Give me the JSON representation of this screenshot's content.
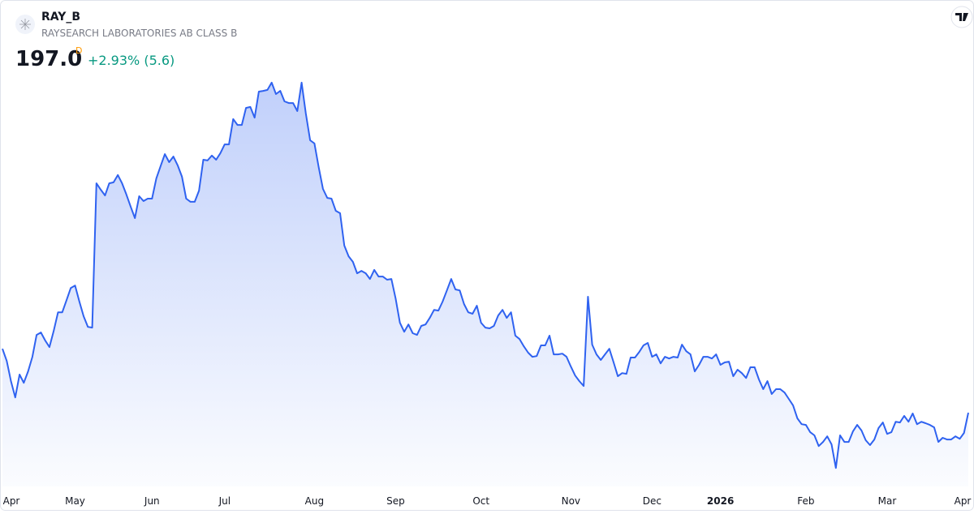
{
  "header": {
    "symbol": "RAY_B",
    "name": "RAYSEARCH LABORATORIES AB CLASS B",
    "price": "197.0",
    "currency_badge": "D",
    "change": "+2.93% (5.6)"
  },
  "chart_data": {
    "type": "area",
    "color": "#2f62f0",
    "ylim": [
      166.7,
      340
    ],
    "xlim": [
      0,
      226
    ],
    "xticks": [
      {
        "value": 1,
        "label": "Apr"
      },
      {
        "value": 17,
        "label": "May"
      },
      {
        "value": 35,
        "label": "Jun"
      },
      {
        "value": 52,
        "label": "Jul"
      },
      {
        "value": 73,
        "label": "Aug"
      },
      {
        "value": 92,
        "label": "Sep"
      },
      {
        "value": 112,
        "label": "Oct"
      },
      {
        "value": 133,
        "label": "Nov"
      },
      {
        "value": 152,
        "label": "Dec"
      },
      {
        "value": 168,
        "label": "2026"
      },
      {
        "value": 188,
        "label": "Feb"
      },
      {
        "value": 207,
        "label": "Mar"
      },
      {
        "value": 226,
        "label": "Apr"
      }
    ],
    "values": [
      223.3,
      218.3,
      210.0,
      203.3,
      212.7,
      209.3,
      214.0,
      220.0,
      229.0,
      230.0,
      226.7,
      224.0,
      230.7,
      238.3,
      238.3,
      243.3,
      248.3,
      249.3,
      242.7,
      236.7,
      232.3,
      232.0,
      291.3,
      288.7,
      286.3,
      291.3,
      291.7,
      294.7,
      291.3,
      286.7,
      281.7,
      277.0,
      286.0,
      284.0,
      285.0,
      285.0,
      293.3,
      298.3,
      303.3,
      300.0,
      302.3,
      298.7,
      294.0,
      285.0,
      283.7,
      283.7,
      288.3,
      301.0,
      300.7,
      302.7,
      301.0,
      303.7,
      307.3,
      307.3,
      317.7,
      315.3,
      315.3,
      322.3,
      322.7,
      318.3,
      329.0,
      329.3,
      329.7,
      332.7,
      328.0,
      329.3,
      325.0,
      324.3,
      324.3,
      321.0,
      332.7,
      320.0,
      309.0,
      307.7,
      298.0,
      289.0,
      285.3,
      285.0,
      280.0,
      279.0,
      265.7,
      261.3,
      259.0,
      254.3,
      255.3,
      254.3,
      252.0,
      255.7,
      253.0,
      253.0,
      251.7,
      252.0,
      244.0,
      234.0,
      230.3,
      233.3,
      229.7,
      229.0,
      232.7,
      233.3,
      236.0,
      239.3,
      239.0,
      242.7,
      247.3,
      252.0,
      247.7,
      247.3,
      241.7,
      238.3,
      237.7,
      241.0,
      234.0,
      232.0,
      231.7,
      232.7,
      237.0,
      239.3,
      236.0,
      238.3,
      228.7,
      227.3,
      224.3,
      221.7,
      220.0,
      220.3,
      224.7,
      224.7,
      228.7,
      221.0,
      221.0,
      221.3,
      220.0,
      216.0,
      212.3,
      210.0,
      208.0,
      244.7,
      225.0,
      221.0,
      218.7,
      221.0,
      223.3,
      217.7,
      212.0,
      213.3,
      213.0,
      219.7,
      219.7,
      222.0,
      224.7,
      225.7,
      220.0,
      221.0,
      217.3,
      220.0,
      219.3,
      220.0,
      219.7,
      225.0,
      222.3,
      221.0,
      214.0,
      216.7,
      220.0,
      220.0,
      219.3,
      221.0,
      216.7,
      217.7,
      218.0,
      212.0,
      214.7,
      213.3,
      211.3,
      215.7,
      215.7,
      210.7,
      206.7,
      210.0,
      204.7,
      206.7,
      206.7,
      205.3,
      202.7,
      200.0,
      194.7,
      192.3,
      192.0,
      189.0,
      187.7,
      183.3,
      185.0,
      187.3,
      184.0,
      174.3,
      187.7,
      185.0,
      185.0,
      189.3,
      192.0,
      189.7,
      185.7,
      183.7,
      186.0,
      190.7,
      193.0,
      188.3,
      189.0,
      193.3,
      193.0,
      195.7,
      193.3,
      196.7,
      192.3,
      193.3,
      192.7,
      192.0,
      191.0,
      185.0,
      186.7,
      186.0,
      186.0,
      187.3,
      186.3,
      188.7,
      197.0
    ]
  }
}
